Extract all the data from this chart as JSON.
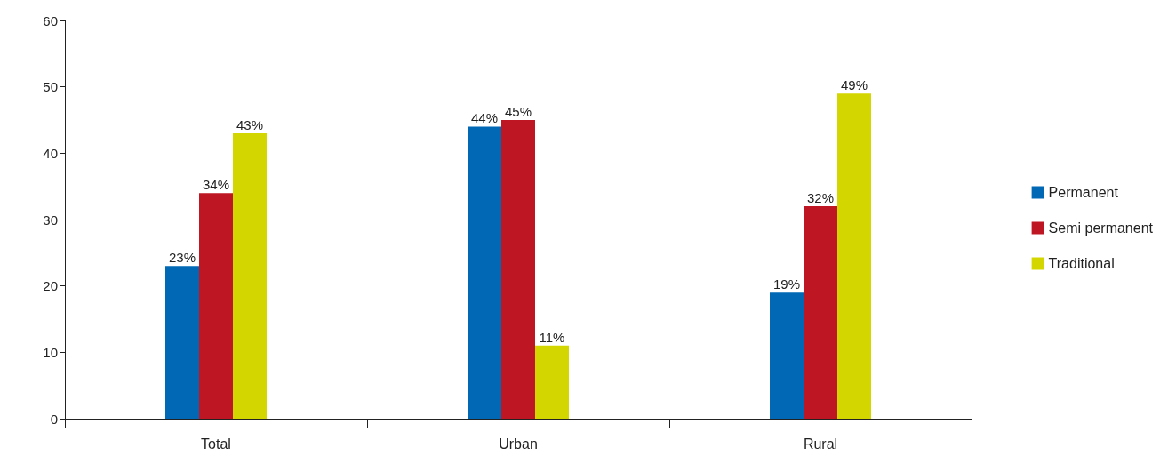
{
  "chart_data": {
    "type": "bar",
    "categories": [
      "Total",
      "Urban",
      "Rural"
    ],
    "series": [
      {
        "name": "Permanent",
        "color": "#0068b4",
        "values": [
          23,
          44,
          19
        ],
        "value_labels": [
          "23%",
          "44%",
          "19%"
        ]
      },
      {
        "name": "Semi permanent",
        "color": "#be1622",
        "values": [
          34,
          45,
          32
        ],
        "value_labels": [
          "34%",
          "45%",
          "32%"
        ]
      },
      {
        "name": "Traditional",
        "color": "#d4d600",
        "values": [
          43,
          11,
          49
        ],
        "value_labels": [
          "43%",
          "11%",
          "49%"
        ]
      }
    ],
    "ylim": [
      0,
      60
    ],
    "yticks": [
      0,
      10,
      20,
      30,
      40,
      50,
      60
    ],
    "grid": false,
    "legend": "right"
  }
}
